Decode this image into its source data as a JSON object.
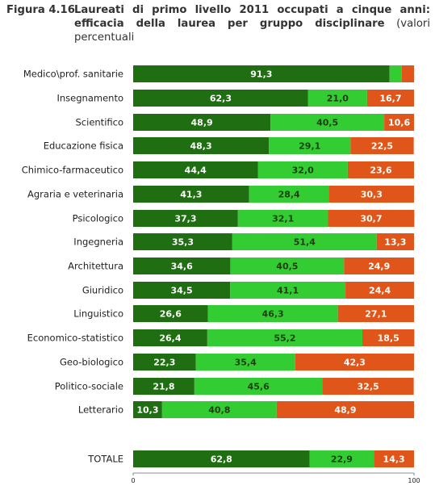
{
  "figure": {
    "label": "Figura 4.16",
    "title_line1": "Laureati di primo livello 2011 occupati a cinque anni:",
    "title_line2_bold": "efficacia della laurea per gruppo disciplinare",
    "title_line2_plain": " (valori",
    "title_line3": "percentuali"
  },
  "colors": {
    "segment1": "#1f6e12",
    "segment2": "#33cc33",
    "segment3": "#e0561a",
    "segment1_text": "#ffffff",
    "segment2_text": "#1f3d10",
    "segment3_text": "#ffffff"
  },
  "chart_data": {
    "type": "bar",
    "orientation": "horizontal",
    "stacked": true,
    "categories": [
      "Medico\\prof. sanitarie",
      "Insegnamento",
      "Scientifico",
      "Educazione fisica",
      "Chimico-farmaceutico",
      "Agraria e veterinaria",
      "Psicologico",
      "Ingegneria",
      "Architettura",
      "Giuridico",
      "Linguistico",
      "Economico-statistico",
      "Geo-biologico",
      "Politico-sociale",
      "Letterario",
      "TOTALE"
    ],
    "series": [
      {
        "values": [
          91.3,
          62.3,
          48.9,
          48.3,
          44.4,
          41.3,
          37.3,
          35.3,
          34.6,
          34.5,
          26.6,
          26.4,
          22.3,
          21.8,
          10.3,
          62.8
        ]
      },
      {
        "values": [
          4.3,
          21.0,
          40.5,
          29.1,
          32.0,
          28.4,
          32.1,
          51.4,
          40.5,
          41.1,
          46.3,
          55.2,
          35.4,
          45.6,
          40.8,
          22.9
        ]
      },
      {
        "values": [
          4.4,
          16.7,
          10.6,
          22.5,
          23.6,
          30.3,
          30.7,
          13.3,
          24.9,
          24.4,
          27.1,
          18.5,
          42.3,
          32.5,
          48.9,
          14.3
        ]
      }
    ],
    "data_labels": [
      [
        "91,3",
        "",
        ""
      ],
      [
        "62,3",
        "21,0",
        "16,7"
      ],
      [
        "48,9",
        "40,5",
        "10,6"
      ],
      [
        "48,3",
        "29,1",
        "22,5"
      ],
      [
        "44,4",
        "32,0",
        "23,6"
      ],
      [
        "41,3",
        "28,4",
        "30,3"
      ],
      [
        "37,3",
        "32,1",
        "30,7"
      ],
      [
        "35,3",
        "51,4",
        "13,3"
      ],
      [
        "34,6",
        "40,5",
        "24,9"
      ],
      [
        "34,5",
        "41,1",
        "24,4"
      ],
      [
        "26,6",
        "46,3",
        "27,1"
      ],
      [
        "26,4",
        "55,2",
        "18,5"
      ],
      [
        "22,3",
        "35,4",
        "42,3"
      ],
      [
        "21,8",
        "45,6",
        "32,5"
      ],
      [
        "10,3",
        "40,8",
        "48,9"
      ],
      [
        "62,8",
        "22,9",
        "14,3"
      ]
    ],
    "xlim": [
      0,
      100
    ],
    "x_ticks": [
      "0",
      "100"
    ],
    "grid": false,
    "legend": "none"
  }
}
